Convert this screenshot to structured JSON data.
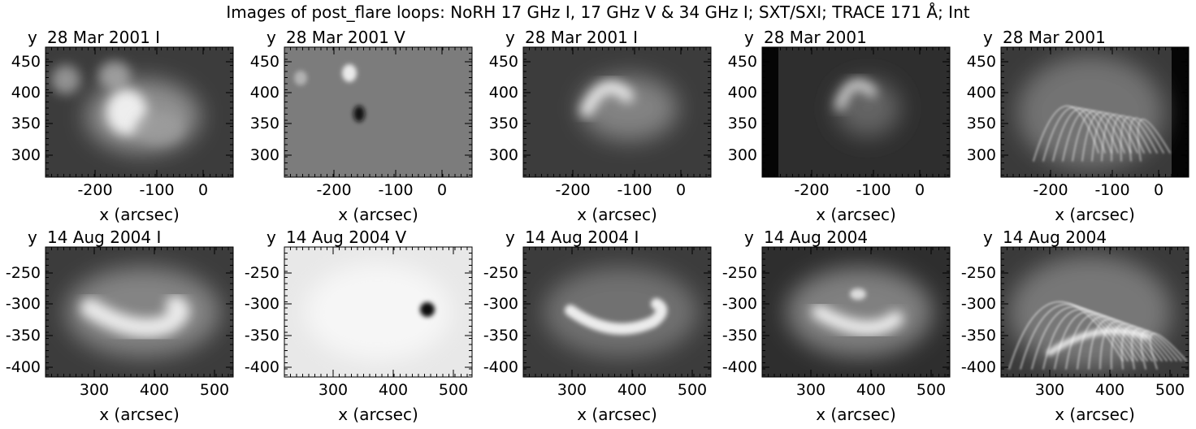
{
  "title": "Images of post_flare loops: NoRH 17 GHz I, 17 GHz V & 34 GHz I; SXT/SXI; TRACE 171 Å; Int",
  "axis": {
    "x_label": "x (arcsec)",
    "y_label": "y"
  },
  "rows": [
    {
      "x_ticks": [
        "-200",
        "-100",
        "0"
      ],
      "y_ticks": [
        "450",
        "400",
        "350",
        "300"
      ],
      "panels": [
        {
          "label": "28 Mar 2001 I",
          "kind": "radio_i"
        },
        {
          "label": "28 Mar 2001 V",
          "kind": "radio_v"
        },
        {
          "label": "28 Mar 2001 I",
          "kind": "radio_34"
        },
        {
          "label": "28 Mar 2001",
          "kind": "xray"
        },
        {
          "label": "28 Mar 2001",
          "kind": "euv"
        }
      ]
    },
    {
      "x_ticks": [
        "300",
        "400",
        "500"
      ],
      "y_ticks": [
        "-250",
        "-300",
        "-350",
        "-400"
      ],
      "panels": [
        {
          "label": "14 Aug 2004 I",
          "kind": "radio_i"
        },
        {
          "label": "14 Aug 2004 V",
          "kind": "radio_v"
        },
        {
          "label": "14 Aug 2004 I",
          "kind": "radio_34"
        },
        {
          "label": "14 Aug 2004",
          "kind": "xray"
        },
        {
          "label": "14 Aug 2004",
          "kind": "euv"
        }
      ]
    }
  ]
}
